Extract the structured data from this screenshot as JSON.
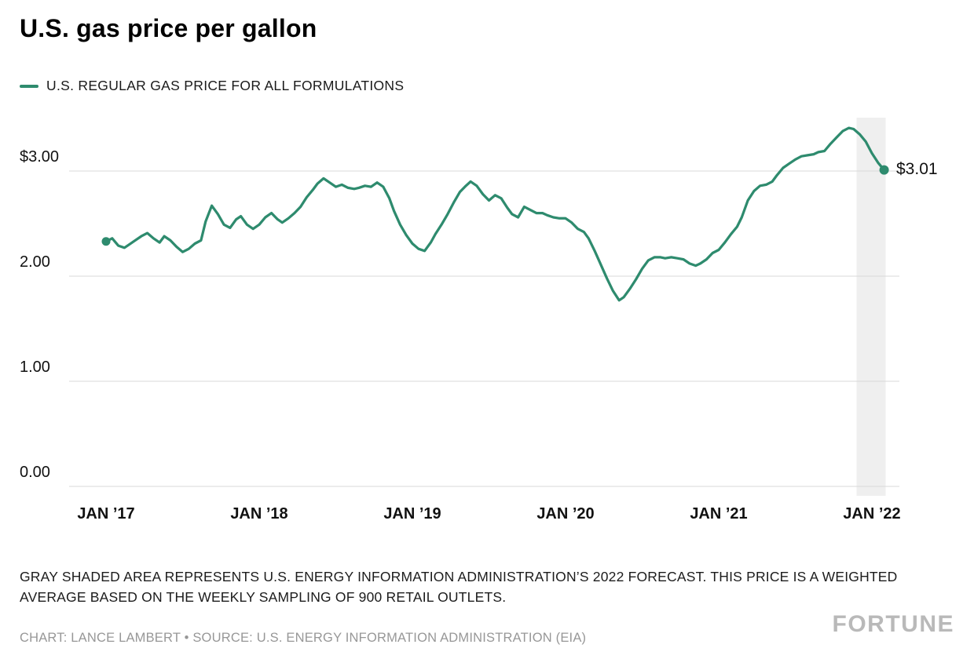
{
  "header": {
    "title": "U.S. gas price per gallon",
    "legend_label": "U.S. REGULAR GAS PRICE FOR ALL FORMULATIONS"
  },
  "footnote": "GRAY SHADED AREA REPRESENTS U.S. ENERGY INFORMATION ADMINISTRATION’S 2022 FORECAST. THIS PRICE IS A WEIGHTED AVERAGE BASED ON THE WEEKLY SAMPLING OF 900 RETAIL OUTLETS.",
  "credit": "CHART: LANCE LAMBERT • SOURCE: U.S. ENERGY INFORMATION ADMINISTRATION (EIA)",
  "logo": "FORTUNE",
  "colors": {
    "line": "#2e8b6e",
    "grid": "#d9d9d9",
    "band": "#efefef",
    "axis_text": "#111111",
    "muted_text": "#979797",
    "logo_text": "#b9b9b9"
  },
  "chart_data": {
    "type": "line",
    "title": "U.S. gas price per gallon",
    "ylim": [
      0,
      3.5
    ],
    "xlim": [
      2016.76,
      2022.2
    ],
    "grid": "horizontal",
    "legend_position": "top-left",
    "y_ticks": [
      {
        "value": 3.0,
        "label": "$3.00"
      },
      {
        "value": 2.0,
        "label": "2.00"
      },
      {
        "value": 1.0,
        "label": "1.00"
      },
      {
        "value": 0.0,
        "label": "0.00"
      }
    ],
    "x_ticks": [
      {
        "value": 2017,
        "label": "JAN ’17"
      },
      {
        "value": 2018,
        "label": "JAN ’18"
      },
      {
        "value": 2019,
        "label": "JAN ’19"
      },
      {
        "value": 2020,
        "label": "JAN ’20"
      },
      {
        "value": 2021,
        "label": "JAN ’21"
      },
      {
        "value": 2022,
        "label": "JAN ’22"
      }
    ],
    "forecast_band": {
      "x_start": 2021.9,
      "x_end": 2022.09
    },
    "start_marker": {
      "x": 2017.0,
      "value": 2.33
    },
    "end_annotation": {
      "x": 2022.08,
      "value": 3.01,
      "label": "$3.01"
    },
    "series": [
      {
        "name": "U.S. REGULAR GAS PRICE FOR ALL FORMULATIONS",
        "color": "#2e8b6e",
        "x": [
          2017.0,
          2017.04,
          2017.08,
          2017.12,
          2017.15,
          2017.19,
          2017.23,
          2017.27,
          2017.31,
          2017.35,
          2017.38,
          2017.42,
          2017.46,
          2017.5,
          2017.54,
          2017.58,
          2017.62,
          2017.65,
          2017.69,
          2017.73,
          2017.77,
          2017.81,
          2017.85,
          2017.88,
          2017.92,
          2017.96,
          2018.0,
          2018.04,
          2018.08,
          2018.12,
          2018.15,
          2018.19,
          2018.23,
          2018.27,
          2018.31,
          2018.35,
          2018.38,
          2018.42,
          2018.46,
          2018.5,
          2018.54,
          2018.58,
          2018.62,
          2018.65,
          2018.69,
          2018.73,
          2018.77,
          2018.81,
          2018.85,
          2018.88,
          2018.92,
          2018.96,
          2019.0,
          2019.04,
          2019.08,
          2019.12,
          2019.15,
          2019.19,
          2019.23,
          2019.27,
          2019.31,
          2019.35,
          2019.38,
          2019.42,
          2019.46,
          2019.5,
          2019.54,
          2019.58,
          2019.62,
          2019.65,
          2019.69,
          2019.73,
          2019.77,
          2019.81,
          2019.85,
          2019.88,
          2019.92,
          2019.96,
          2020.0,
          2020.04,
          2020.08,
          2020.12,
          2020.15,
          2020.19,
          2020.23,
          2020.27,
          2020.31,
          2020.35,
          2020.38,
          2020.42,
          2020.46,
          2020.5,
          2020.54,
          2020.58,
          2020.62,
          2020.65,
          2020.69,
          2020.73,
          2020.77,
          2020.81,
          2020.85,
          2020.88,
          2020.92,
          2020.96,
          2021.0,
          2021.04,
          2021.08,
          2021.12,
          2021.15,
          2021.19,
          2021.23,
          2021.27,
          2021.31,
          2021.35,
          2021.38,
          2021.42,
          2021.46,
          2021.5,
          2021.54,
          2021.58,
          2021.62,
          2021.65,
          2021.69,
          2021.73,
          2021.77,
          2021.81,
          2021.85,
          2021.88,
          2021.92,
          2021.96,
          2022.0,
          2022.04,
          2022.08
        ],
        "values": [
          2.33,
          2.36,
          2.29,
          2.27,
          2.3,
          2.34,
          2.38,
          2.41,
          2.36,
          2.32,
          2.38,
          2.34,
          2.28,
          2.23,
          2.26,
          2.31,
          2.34,
          2.52,
          2.67,
          2.59,
          2.49,
          2.46,
          2.54,
          2.57,
          2.49,
          2.45,
          2.49,
          2.56,
          2.6,
          2.54,
          2.51,
          2.55,
          2.6,
          2.66,
          2.75,
          2.82,
          2.88,
          2.93,
          2.89,
          2.85,
          2.87,
          2.84,
          2.83,
          2.84,
          2.86,
          2.85,
          2.89,
          2.85,
          2.74,
          2.62,
          2.49,
          2.39,
          2.31,
          2.26,
          2.24,
          2.32,
          2.4,
          2.49,
          2.59,
          2.7,
          2.8,
          2.86,
          2.9,
          2.86,
          2.78,
          2.72,
          2.77,
          2.74,
          2.65,
          2.59,
          2.56,
          2.66,
          2.63,
          2.6,
          2.6,
          2.58,
          2.56,
          2.55,
          2.55,
          2.51,
          2.45,
          2.42,
          2.36,
          2.24,
          2.11,
          1.98,
          1.86,
          1.77,
          1.8,
          1.88,
          1.97,
          2.07,
          2.15,
          2.18,
          2.18,
          2.17,
          2.18,
          2.17,
          2.16,
          2.12,
          2.1,
          2.12,
          2.16,
          2.22,
          2.25,
          2.32,
          2.4,
          2.47,
          2.56,
          2.72,
          2.81,
          2.86,
          2.87,
          2.9,
          2.96,
          3.03,
          3.07,
          3.11,
          3.14,
          3.15,
          3.16,
          3.18,
          3.19,
          3.26,
          3.32,
          3.38,
          3.41,
          3.4,
          3.35,
          3.28,
          3.17,
          3.08,
          3.01
        ]
      }
    ]
  }
}
